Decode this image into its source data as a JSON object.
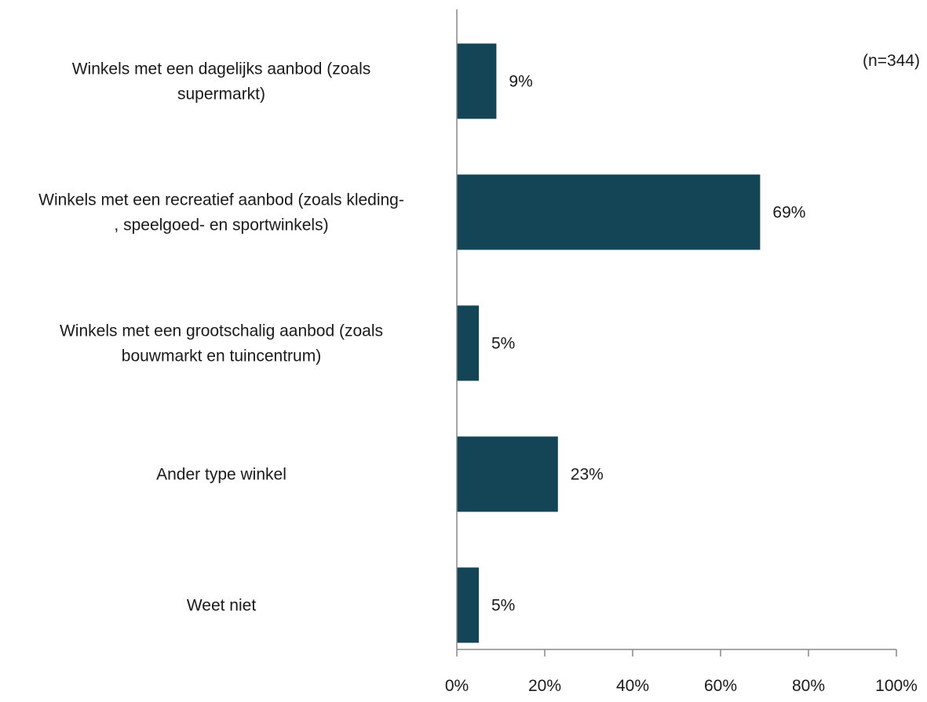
{
  "chart_data": {
    "type": "bar",
    "orientation": "horizontal",
    "note": "(n=344)",
    "categories": [
      [
        "Winkels met een dagelijks aanbod (zoals",
        "supermarkt)"
      ],
      [
        "Winkels met een recreatief aanbod  (zoals kleding-",
        ", speelgoed- en sportwinkels)"
      ],
      [
        "Winkels met een grootschalig aanbod (zoals",
        "bouwmarkt en tuincentrum)"
      ],
      [
        "Ander type winkel"
      ],
      [
        "Weet niet"
      ]
    ],
    "values": [
      9,
      69,
      5,
      23,
      5
    ],
    "value_labels": [
      "9%",
      "69%",
      "5%",
      "23%",
      "5%"
    ],
    "xlim": [
      0,
      100
    ],
    "xticks": [
      0,
      20,
      40,
      60,
      80,
      100
    ],
    "xtick_labels": [
      "0%",
      "20%",
      "40%",
      "60%",
      "80%",
      "100%"
    ],
    "bar_color": "#134556",
    "axis_color": "#888888",
    "grid": false
  }
}
